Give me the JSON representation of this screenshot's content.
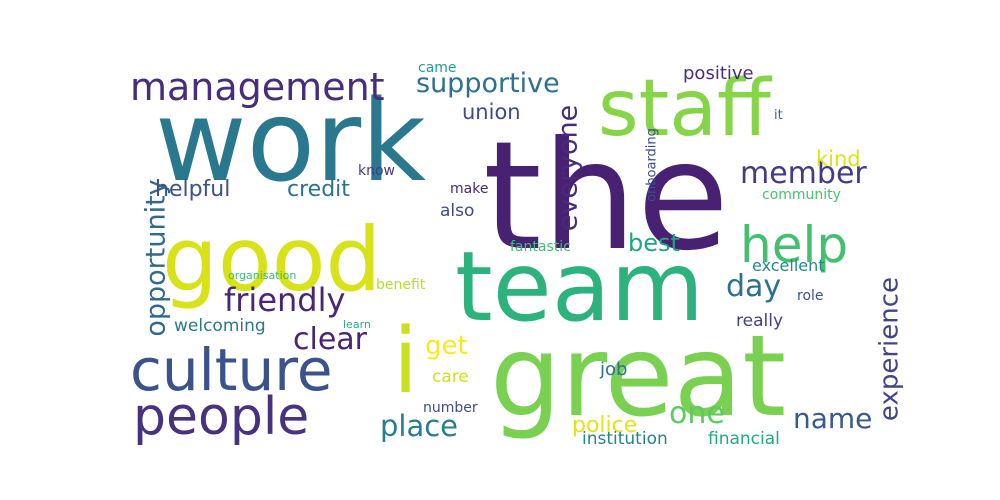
{
  "words": [
    {
      "key": "the",
      "text": "the",
      "color": "#482173"
    },
    {
      "key": "work",
      "text": "work",
      "color": "#2a788e"
    },
    {
      "key": "great",
      "text": "great",
      "color": "#7ad151"
    },
    {
      "key": "team",
      "text": "team",
      "color": "#2db27d"
    },
    {
      "key": "good",
      "text": "good",
      "color": "#d8e219"
    },
    {
      "key": "staff",
      "text": "staff",
      "color": "#86d549"
    },
    {
      "key": "culture",
      "text": "culture",
      "color": "#3b528b"
    },
    {
      "key": "people",
      "text": "people",
      "color": "#46327e"
    },
    {
      "key": "help",
      "text": "help",
      "color": "#44bf70"
    },
    {
      "key": "management",
      "text": "management",
      "color": "#472d7b"
    },
    {
      "key": "i",
      "text": "i",
      "color": "#c8e020"
    },
    {
      "key": "friendly",
      "text": "friendly",
      "color": "#482576"
    },
    {
      "key": "supportive",
      "text": "supportive",
      "color": "#2c728e"
    },
    {
      "key": "opportunity",
      "text": "opportunity",
      "color": "#31688e"
    },
    {
      "key": "everyone",
      "text": "everyone",
      "color": "#472c7a"
    },
    {
      "key": "experience",
      "text": "experience",
      "color": "#414487"
    },
    {
      "key": "member",
      "text": "member",
      "color": "#443b84"
    },
    {
      "key": "day",
      "text": "day",
      "color": "#2d708e"
    },
    {
      "key": "one",
      "text": "one",
      "color": "#5ec962"
    },
    {
      "key": "clear",
      "text": "clear",
      "color": "#482475"
    },
    {
      "key": "place",
      "text": "place",
      "color": "#287d8e"
    },
    {
      "key": "name",
      "text": "name",
      "color": "#38598c"
    },
    {
      "key": "best",
      "text": "best",
      "color": "#20a386"
    },
    {
      "key": "get",
      "text": "get",
      "color": "#fde725"
    },
    {
      "key": "helpful",
      "text": "helpful",
      "color": "#3b528b"
    },
    {
      "key": "credit",
      "text": "credit",
      "color": "#2c718e"
    },
    {
      "key": "police",
      "text": "police",
      "color": "#e5e419"
    },
    {
      "key": "union",
      "text": "union",
      "color": "#3e4a89"
    },
    {
      "key": "positive",
      "text": "positive",
      "color": "#462f7c"
    },
    {
      "key": "kind",
      "text": "kind",
      "color": "#dde318"
    },
    {
      "key": "welcoming",
      "text": "welcoming",
      "color": "#2a788e"
    },
    {
      "key": "institution",
      "text": "institution",
      "color": "#26828e"
    },
    {
      "key": "financial",
      "text": "financial",
      "color": "#22a884"
    },
    {
      "key": "excellent",
      "text": "excellent",
      "color": "#23898e"
    },
    {
      "key": "really",
      "text": "really",
      "color": "#424086"
    },
    {
      "key": "also",
      "text": "also",
      "color": "#3f4889"
    },
    {
      "key": "care",
      "text": "care",
      "color": "#d0e11c"
    },
    {
      "key": "job",
      "text": "job",
      "color": "#2c728e"
    },
    {
      "key": "fantastic",
      "text": "fantastic",
      "color": "#3dbc74"
    },
    {
      "key": "make",
      "text": "make",
      "color": "#482878"
    },
    {
      "key": "know",
      "text": "know",
      "color": "#443983"
    },
    {
      "key": "onboarding",
      "text": "onboarding",
      "color": "#3d4e8a"
    },
    {
      "key": "community",
      "text": "community",
      "color": "#48c16e"
    },
    {
      "key": "number",
      "text": "number",
      "color": "#3d4d8a"
    },
    {
      "key": "role",
      "text": "role",
      "color": "#3b528b"
    },
    {
      "key": "benefit",
      "text": "benefit",
      "color": "#b5de2b"
    },
    {
      "key": "came",
      "text": "came",
      "color": "#1f9e89"
    },
    {
      "key": "it",
      "text": "it",
      "color": "#2e6e8e"
    },
    {
      "key": "organisation",
      "text": "organisation",
      "color": "#3aba76"
    },
    {
      "key": "learn",
      "text": "learn",
      "color": "#29af7f"
    }
  ]
}
